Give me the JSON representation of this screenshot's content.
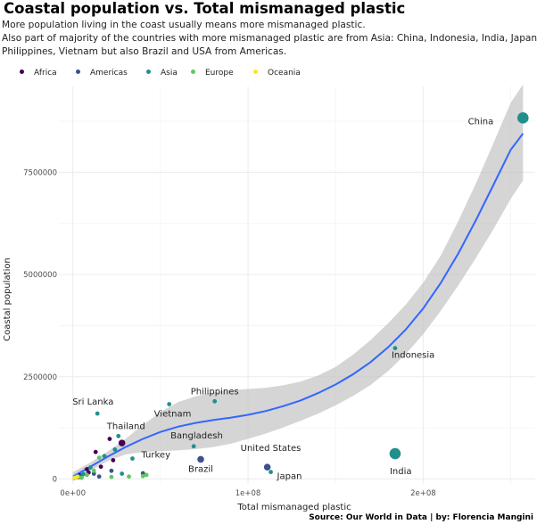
{
  "chart_data": {
    "type": "scatter",
    "title": "Coastal population vs. Total mismanaged plastic",
    "subtitle_lines": [
      "More population living in the coast usually means more mismanaged plastic.",
      "Also part of majority of the countries with more mismanaged plastic are from Asia: China, Indonesia, India, Japan",
      "Philippines, Vietnam but also Brazil and USA from Americas."
    ],
    "xlabel": "Total mismanaged plastic",
    "ylabel": "Coastal population",
    "xlim": [
      -8000000,
      264000000
    ],
    "ylim": [
      -120000,
      9600000
    ],
    "xticks": [
      0,
      100000000,
      200000000
    ],
    "xtick_labels": [
      "0e+00",
      "1e+08",
      "2e+08"
    ],
    "yticks": [
      0,
      2500000,
      5000000,
      7500000
    ],
    "ytick_labels": [
      "0",
      "2500000",
      "5000000",
      "7500000"
    ],
    "legend": {
      "position": "top-left",
      "entries": [
        {
          "name": "Africa",
          "color": "#440154"
        },
        {
          "name": "Americas",
          "color": "#3b528b"
        },
        {
          "name": "Asia",
          "color": "#21908c"
        },
        {
          "name": "Europe",
          "color": "#5dc863"
        },
        {
          "name": "Oceania",
          "color": "#fde725"
        }
      ]
    },
    "colors": {
      "Africa": "#440154",
      "Americas": "#3b528b",
      "Asia": "#21908c",
      "Europe": "#5dc863",
      "Oceania": "#fde725",
      "trend": "#3366ff",
      "ribbon": "#bebebe"
    },
    "points": [
      {
        "label": "China",
        "region": "Asia",
        "x": 257000000,
        "y": 8830000,
        "size": 3
      },
      {
        "label": "Indonesia",
        "region": "Asia",
        "x": 184000000,
        "y": 3200000,
        "size": 1
      },
      {
        "label": "India",
        "region": "Asia",
        "x": 184000000,
        "y": 620000,
        "size": 3
      },
      {
        "label": "Philippines",
        "region": "Asia",
        "x": 81000000,
        "y": 1900000,
        "size": 1
      },
      {
        "label": "Vietnam",
        "region": "Asia",
        "x": 55000000,
        "y": 1830000,
        "size": 1
      },
      {
        "label": "Sri Lanka",
        "region": "Asia",
        "x": 14000000,
        "y": 1600000,
        "size": 1
      },
      {
        "label": "Thailand",
        "region": "Asia",
        "x": 26000000,
        "y": 1050000,
        "size": 1
      },
      {
        "label": "Bangladesh",
        "region": "Asia",
        "x": 69000000,
        "y": 800000,
        "size": 1
      },
      {
        "label": "Turkey",
        "region": "Asia",
        "x": 34000000,
        "y": 500000,
        "size": 1
      },
      {
        "label": "Brazil",
        "region": "Americas",
        "x": 73000000,
        "y": 480000,
        "size": 2
      },
      {
        "label": "United States",
        "region": "Americas",
        "x": 111000000,
        "y": 290000,
        "size": 2
      },
      {
        "label": "Japan",
        "region": "Asia",
        "x": 113000000,
        "y": 170000,
        "size": 1
      },
      {
        "label": "",
        "region": "Africa",
        "x": 13000000,
        "y": 660000,
        "size": 1
      },
      {
        "label": "",
        "region": "Africa",
        "x": 21000000,
        "y": 980000,
        "size": 1
      },
      {
        "label": "",
        "region": "Africa",
        "x": 28000000,
        "y": 880000,
        "size": 2
      },
      {
        "label": "",
        "region": "Africa",
        "x": 23000000,
        "y": 460000,
        "size": 1
      },
      {
        "label": "",
        "region": "Africa",
        "x": 8000000,
        "y": 240000,
        "size": 1
      },
      {
        "label": "",
        "region": "Africa",
        "x": 16000000,
        "y": 300000,
        "size": 1
      },
      {
        "label": "",
        "region": "Africa",
        "x": 4000000,
        "y": 90000,
        "size": 1
      },
      {
        "label": "",
        "region": "Africa",
        "x": 9000000,
        "y": 160000,
        "size": 1
      },
      {
        "label": "",
        "region": "Americas",
        "x": 22000000,
        "y": 200000,
        "size": 1
      },
      {
        "label": "",
        "region": "Americas",
        "x": 12000000,
        "y": 130000,
        "size": 1
      },
      {
        "label": "",
        "region": "Americas",
        "x": 5000000,
        "y": 80000,
        "size": 1
      },
      {
        "label": "",
        "region": "Americas",
        "x": 40000000,
        "y": 140000,
        "size": 1
      },
      {
        "label": "",
        "region": "Americas",
        "x": 3000000,
        "y": 40000,
        "size": 1
      },
      {
        "label": "",
        "region": "Americas",
        "x": 15000000,
        "y": 60000,
        "size": 1
      },
      {
        "label": "",
        "region": "Asia",
        "x": 18000000,
        "y": 560000,
        "size": 1
      },
      {
        "label": "",
        "region": "Asia",
        "x": 24000000,
        "y": 720000,
        "size": 1
      },
      {
        "label": "",
        "region": "Asia",
        "x": 10000000,
        "y": 280000,
        "size": 1
      },
      {
        "label": "",
        "region": "Asia",
        "x": 6000000,
        "y": 120000,
        "size": 1
      },
      {
        "label": "",
        "region": "Asia",
        "x": 28000000,
        "y": 130000,
        "size": 1
      },
      {
        "label": "",
        "region": "Asia",
        "x": 2000000,
        "y": 50000,
        "size": 1
      },
      {
        "label": "",
        "region": "Europe",
        "x": 15000000,
        "y": 520000,
        "size": 1
      },
      {
        "label": "",
        "region": "Europe",
        "x": 12000000,
        "y": 200000,
        "size": 1
      },
      {
        "label": "",
        "region": "Europe",
        "x": 32000000,
        "y": 60000,
        "size": 1
      },
      {
        "label": "",
        "region": "Europe",
        "x": 40000000,
        "y": 70000,
        "size": 1
      },
      {
        "label": "",
        "region": "Europe",
        "x": 42000000,
        "y": 100000,
        "size": 1
      },
      {
        "label": "",
        "region": "Europe",
        "x": 22000000,
        "y": 50000,
        "size": 1
      },
      {
        "label": "",
        "region": "Europe",
        "x": 5000000,
        "y": 30000,
        "size": 1
      },
      {
        "label": "",
        "region": "Europe",
        "x": 8000000,
        "y": 100000,
        "size": 1
      },
      {
        "label": "",
        "region": "Europe",
        "x": 1000000,
        "y": 20000,
        "size": 1
      },
      {
        "label": "",
        "region": "Europe",
        "x": 3000000,
        "y": 60000,
        "size": 1
      },
      {
        "label": "",
        "region": "Oceania",
        "x": 1000000,
        "y": 30000,
        "size": 1
      },
      {
        "label": "",
        "region": "Oceania",
        "x": 2500000,
        "y": 50000,
        "size": 1
      }
    ],
    "smooth": {
      "method": "loess",
      "x": [
        0,
        10000000,
        20000000,
        30000000,
        40000000,
        50000000,
        60000000,
        70000000,
        80000000,
        90000000,
        100000000,
        110000000,
        120000000,
        130000000,
        140000000,
        150000000,
        160000000,
        170000000,
        180000000,
        190000000,
        200000000,
        210000000,
        220000000,
        230000000,
        240000000,
        250000000,
        257000000
      ],
      "y": [
        60000,
        300000,
        550000,
        780000,
        980000,
        1150000,
        1280000,
        1370000,
        1440000,
        1500000,
        1570000,
        1660000,
        1780000,
        1920000,
        2100000,
        2310000,
        2560000,
        2860000,
        3220000,
        3650000,
        4170000,
        4790000,
        5510000,
        6320000,
        7180000,
        8050000,
        8450000
      ],
      "lower": [
        -50000,
        200000,
        440000,
        600000,
        660000,
        680000,
        700000,
        730000,
        780000,
        860000,
        980000,
        1110000,
        1260000,
        1420000,
        1600000,
        1800000,
        2030000,
        2300000,
        2640000,
        3050000,
        3540000,
        4110000,
        4730000,
        5400000,
        6100000,
        6850000,
        7300000
      ],
      "upper": [
        170000,
        400000,
        680000,
        980000,
        1320000,
        1640000,
        1880000,
        2020000,
        2120000,
        2170000,
        2200000,
        2230000,
        2290000,
        2380000,
        2530000,
        2740000,
        3040000,
        3400000,
        3810000,
        4260000,
        4800000,
        5460000,
        6300000,
        7220000,
        8200000,
        9200000,
        9650000
      ]
    }
  },
  "caption": "Source: Our World in Data | by: Florencia Mangini"
}
